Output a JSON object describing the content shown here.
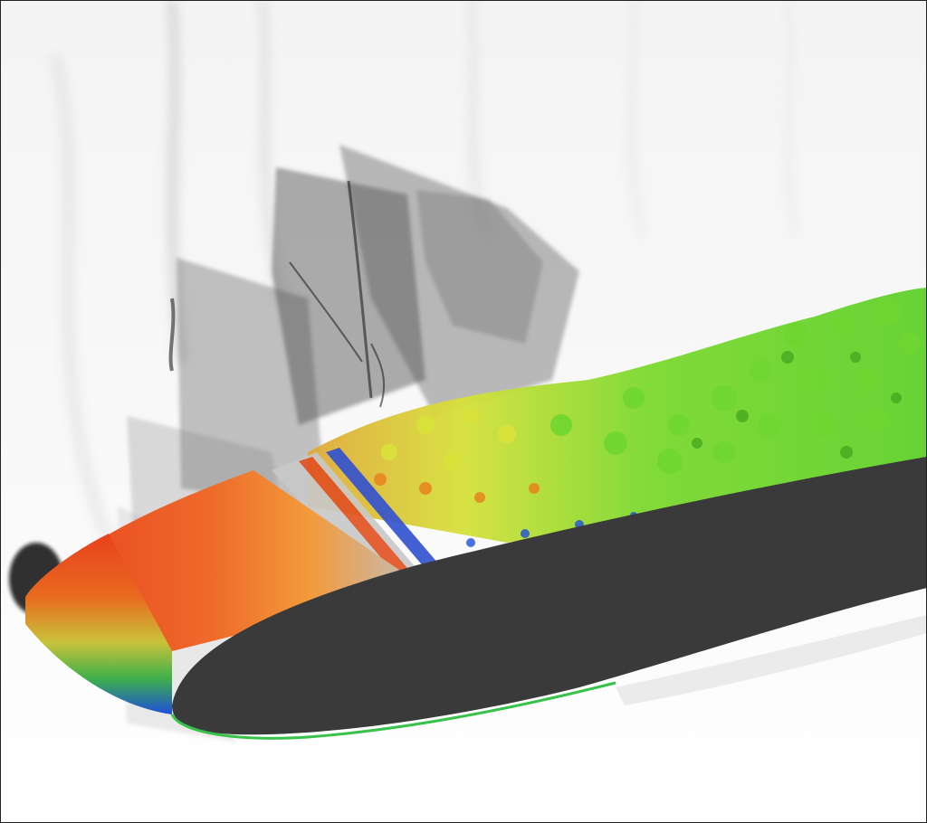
{
  "image": {
    "kind": "rendering",
    "palette": {
      "background": "#fdfdfd",
      "airfoil_side": "#3a3a3a",
      "leading_edge_red": "#e8411e",
      "leading_edge_orange": "#f39a3a",
      "turbulence_green": "#5fd02a",
      "turbulence_yellow": "#d6e03a",
      "turbulence_blue": "#1e4fd8",
      "shadow_gray": "#555555"
    }
  }
}
